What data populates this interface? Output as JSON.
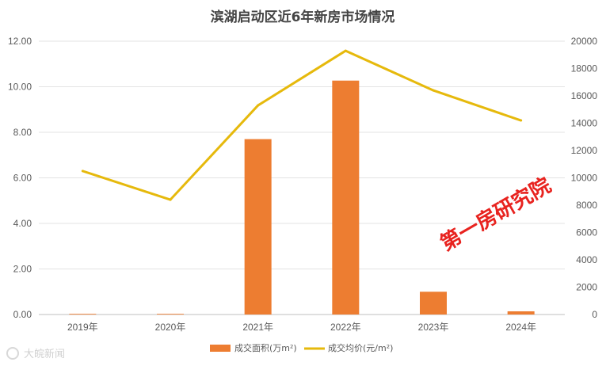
{
  "chart_data": {
    "type": "bar+line",
    "title": "滨湖启动区近6年新房市场情况",
    "categories": [
      "2019年",
      "2020年",
      "2021年",
      "2022年",
      "2023年",
      "2024年"
    ],
    "series": [
      {
        "name": "成交面积(万m²)",
        "type": "bar",
        "axis": "left",
        "color": "#ed7d31",
        "values": [
          0.03,
          0.03,
          7.7,
          10.27,
          1.0,
          0.14
        ]
      },
      {
        "name": "成交均价(元/m²)",
        "type": "line",
        "axis": "right",
        "color": "#e6b90c",
        "values": [
          10500,
          8400,
          15300,
          19300,
          16400,
          14200
        ]
      }
    ],
    "y_left": {
      "min": 0,
      "max": 12,
      "step": 2,
      "tick_labels": [
        "0.00",
        "2.00",
        "4.00",
        "6.00",
        "8.00",
        "10.00",
        "12.00"
      ]
    },
    "y_right": {
      "min": 0,
      "max": 20000,
      "step": 2000,
      "tick_labels": [
        "0",
        "2000",
        "4000",
        "6000",
        "8000",
        "10000",
        "12000",
        "14000",
        "16000",
        "18000",
        "20000"
      ]
    },
    "grid": true,
    "legend_position": "bottom",
    "watermark": "第一房研究院",
    "source_logo": "大皖新闻"
  }
}
